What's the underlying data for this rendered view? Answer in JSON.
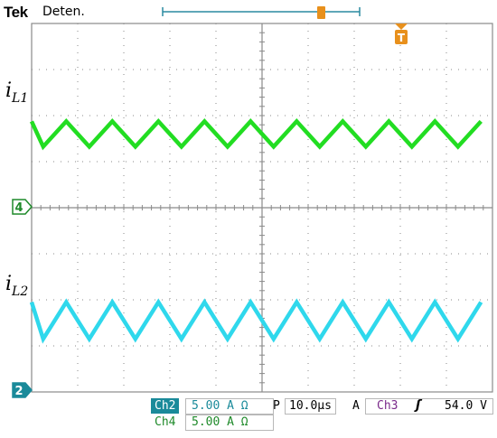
{
  "header": {
    "brand": "Tek",
    "acquisition_state": "Deten."
  },
  "traces": {
    "ch1_label_main": "i",
    "ch1_label_sub": "L1",
    "ch2_label_main": "i",
    "ch2_label_sub": "L2",
    "ch4_marker": "4",
    "ch2_marker": "2",
    "trigger_position_marker": "T"
  },
  "readout": {
    "ch2_name": "Ch2",
    "ch2_scale": "5.00 A Ω",
    "ch4_name": "Ch4",
    "ch4_scale": "5.00 A Ω",
    "timebase_prefix": "P",
    "timebase": "10.0μs",
    "trigger_mode": "A",
    "trigger_source": "Ch3",
    "trigger_slope": "ʃ",
    "trigger_level": "54.0 V"
  },
  "colors": {
    "background": "#ffffff",
    "grid": "#8a8a8a",
    "ch_green": "#22dd22",
    "ch_cyan": "#2fd8ec",
    "trigger_orange": "#e8901c",
    "ch2_accent": "#1a8a9a",
    "ch4_accent": "#1f8a2a"
  },
  "chart_data": {
    "type": "line",
    "title": "",
    "xlabel": "",
    "ylabel": "",
    "x_unit": "μs",
    "x_per_division": 10.0,
    "x_divisions": 10,
    "y_divisions": 8,
    "grid": true,
    "series": [
      {
        "name": "iL1",
        "channel": "Ch4",
        "color": "#22dd22",
        "waveform": "triangle",
        "period_us": 10.0,
        "center_div": 1.6,
        "peak_to_peak_div": 0.55,
        "cycles": 10
      },
      {
        "name": "iL2",
        "channel": "Ch2",
        "color": "#2fd8ec",
        "waveform": "triangle",
        "period_us": 10.0,
        "center_div": -2.45,
        "peak_to_peak_div": 0.8,
        "cycles": 10
      }
    ]
  }
}
